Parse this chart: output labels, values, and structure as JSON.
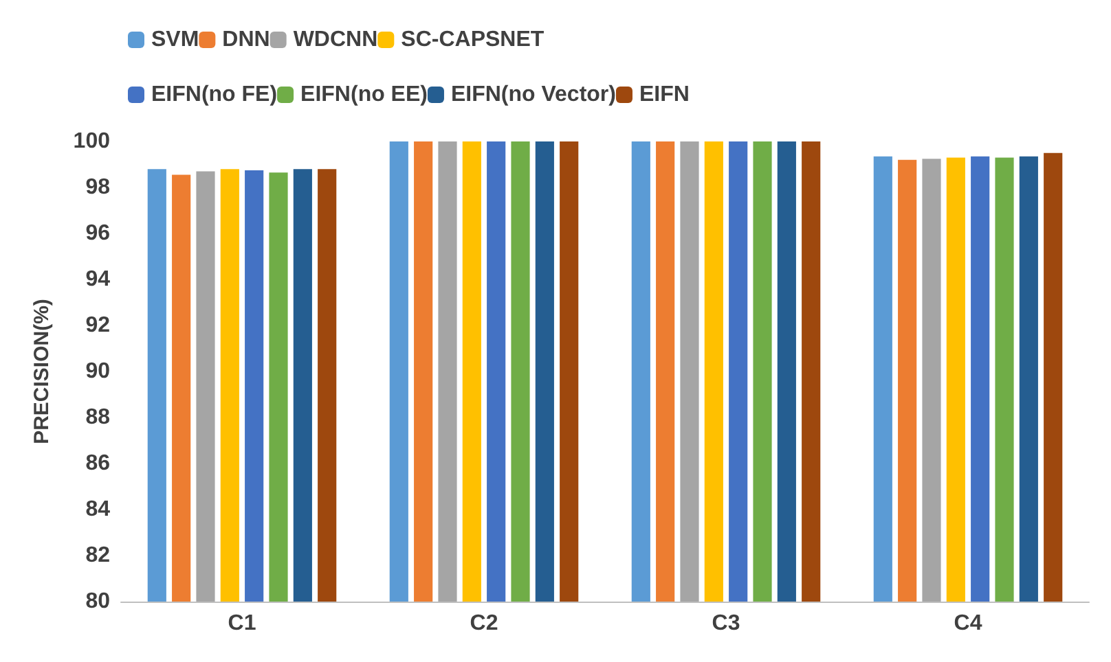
{
  "chart_data": {
    "type": "bar",
    "ylabel": "PRECISION(%)",
    "categories": [
      "C1",
      "C2",
      "C3",
      "C4"
    ],
    "series": [
      {
        "name": "SVM",
        "color": "#5b9bd5",
        "values": [
          98.8,
          100,
          100,
          99.35
        ]
      },
      {
        "name": "DNN",
        "color": "#ed7d31",
        "values": [
          98.55,
          100,
          100,
          99.2
        ]
      },
      {
        "name": "WDCNN",
        "color": "#a5a5a5",
        "values": [
          98.7,
          100,
          100,
          99.25
        ]
      },
      {
        "name": "SC-CAPSNET",
        "color": "#ffc000",
        "values": [
          98.8,
          100,
          100,
          99.3
        ]
      },
      {
        "name": "EIFN(no FE)",
        "color": "#4472c4",
        "values": [
          98.75,
          100,
          100,
          99.35
        ]
      },
      {
        "name": "EIFN(no EE)",
        "color": "#70ad47",
        "values": [
          98.65,
          100,
          100,
          99.3
        ]
      },
      {
        "name": "EIFN(no Vector)",
        "color": "#255e91",
        "values": [
          98.8,
          100,
          100,
          99.35
        ]
      },
      {
        "name": "EIFN",
        "color": "#9e480e",
        "values": [
          98.8,
          100,
          100,
          99.5
        ]
      }
    ],
    "ylim": [
      80,
      100
    ],
    "yticks": [
      80,
      82,
      84,
      86,
      88,
      90,
      92,
      94,
      96,
      98,
      100
    ],
    "grid": false,
    "legend": "top"
  }
}
